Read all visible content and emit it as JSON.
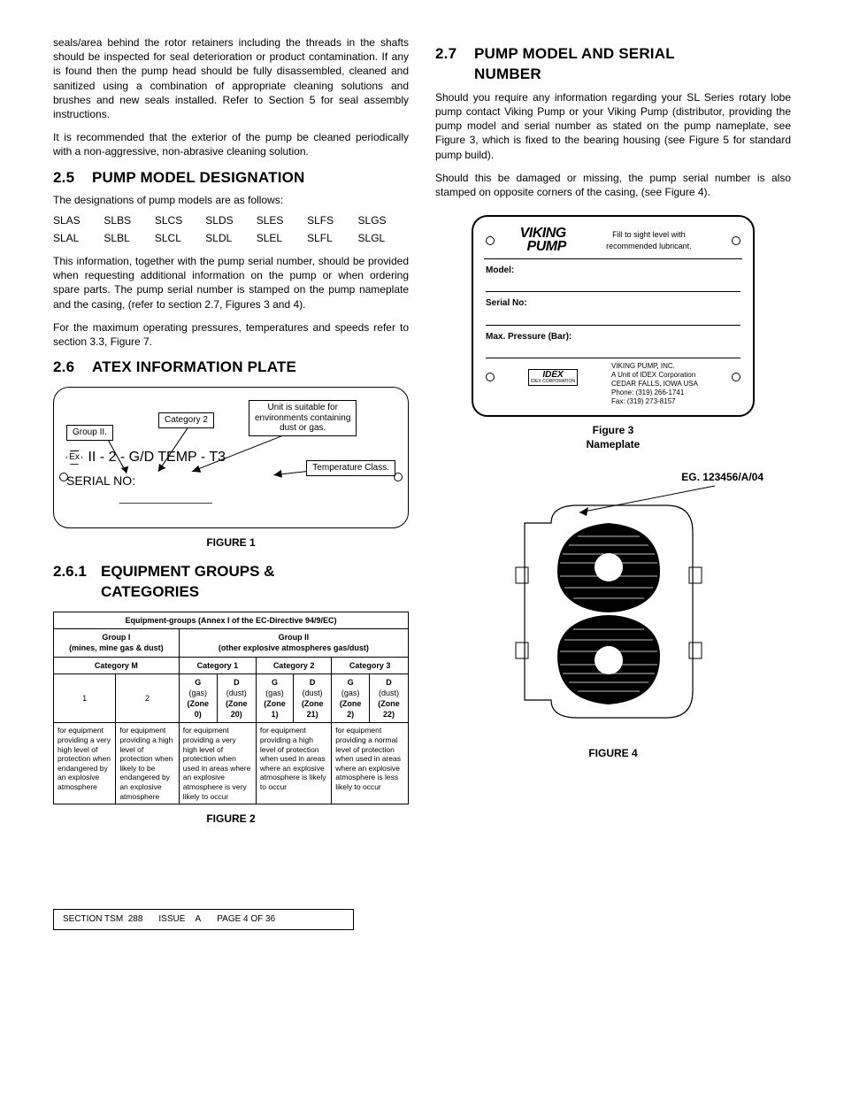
{
  "leftCol": {
    "para1": "seals/area behind the rotor retainers including the threads in the shafts should be inspected for seal deterioration or product contamination. If any is found then the pump head should be fully disassembled, cleaned and sanitized using a combination of appropriate cleaning solutions and brushes and new seals installed. Refer to Section 5 for seal assembly instructions.",
    "para2": "It is recommended that the exterior of the pump be cleaned periodically with a non-aggressive, non-abrasive cleaning solution.",
    "sec25_num": "2.5",
    "sec25_title": "PUMP MODEL DESIGNATION",
    "sec25_intro": "The designations of pump models are as follows:",
    "desig_row1": [
      "SLAS",
      "SLBS",
      "SLCS",
      "SLDS",
      "SLES",
      "SLFS",
      "SLGS"
    ],
    "desig_row2": [
      "SLAL",
      "SLBL",
      "SLCL",
      "SLDL",
      "SLEL",
      "SLFL",
      "SLGL"
    ],
    "sec25_p1": "This information, together with the pump serial number, should be provided when requesting additional information on the pump or when ordering spare parts. The pump serial number is stamped on the pump nameplate and the casing, (refer to section 2.7, Figures 3 and 4).",
    "sec25_p2": "For the maximum operating pressures, temperatures and speeds refer to section 3.3, Figure 7.",
    "sec26_num": "2.6",
    "sec26_title": "ATEX INFORMATION PLATE",
    "atex": {
      "group2": "Group II.",
      "category2": "Category 2",
      "suitable": "Unit is suitable for\nenvironments containing\ndust or gas.",
      "tempclass": "Temperature Class.",
      "code": "II - 2 - G/D  TEMP - T3",
      "ex": "Ex",
      "serial": "SERIAL NO:"
    },
    "fig1_caption": "FIGURE 1",
    "sec261_num": "2.6.1",
    "sec261_title_l1": "EQUIPMENT GROUPS &",
    "sec261_title_l2": "CATEGORIES",
    "eqtable": {
      "title": "Equipment-groups (Annex I of the EC-Directive 94/9/EC)",
      "g1_head": "Group I",
      "g1_sub": "(mines, mine gas & dust)",
      "g2_head": "Group II",
      "g2_sub": "(other explosive atmospheres gas/dust)",
      "catM": "Category M",
      "cat1": "Category 1",
      "cat2": "Category 2",
      "cat3": "Category 3",
      "one": "1",
      "two": "2",
      "G": "G",
      "D": "D",
      "gas": "(gas)",
      "dust": "(dust)",
      "z0": "(Zone 0)",
      "z20": "(Zone 20)",
      "z1": "(Zone 1)",
      "z21": "(Zone 21)",
      "z2": "(Zone 2)",
      "z22": "(Zone 22)",
      "d1": "for equipment providing a very high level of protection when endangered by an explosive atmosphere",
      "d2": "for equipment providing a high level of protection when likely to be endangered by an explosive atmosphere",
      "d3": "for equipment providing a very high level of protection when used in areas where an explosive atmosphere is very likely to occur",
      "d4": "for equipment providing a high level of protection when used in areas where an explosive  atmosphere is likely to occur",
      "d5": "for equipment providing a normal level of protection when used in areas where an explosive atmosphere is less likely to occur"
    },
    "fig2_caption": "FIGURE 2"
  },
  "rightCol": {
    "sec27_num": "2.7",
    "sec27_title_l1": "PUMP MODEL AND SERIAL",
    "sec27_title_l2": "NUMBER",
    "sec27_p1": "Should you require any information regarding your SL Series rotary lobe pump contact Viking Pump or your Viking Pump (distributor, providing the pump model and serial number as stated on the pump nameplate, see Figure 3, which is fixed to the bearing housing (see Figure 5 for standard pump build).",
    "sec27_p2": "Should this be damaged or missing, the pump serial number is also stamped on opposite corners of the casing, (see Figure 4).",
    "nameplate": {
      "logo1": "VIKING",
      "logo2": "PUMP",
      "fill": "Fill to sight level with recommended lubricant.",
      "model": "Model:",
      "serial": "Serial No:",
      "maxp": "Max. Pressure (Bar):",
      "idex": "IDEX",
      "idex_sub": "IDEX CORPORATION",
      "addr1": "VIKING PUMP, INC.",
      "addr2": "A Unit of IDEX Corporation",
      "addr3": "CEDAR FALLS, IOWA  USA",
      "addr4": "Phone: (319) 266-1741",
      "addr5": "Fax: (319) 273-8157"
    },
    "fig3_caption_l1": "Figure 3",
    "fig3_caption_l2": "Nameplate",
    "fig4_eg": "EG. 123456/A/04",
    "fig4_caption": "FIGURE 4"
  },
  "footer": {
    "section": "SECTION TSM",
    "section_val": "288",
    "issue": "ISSUE",
    "issue_val": "A",
    "page": "PAGE 4  OF  36"
  },
  "colors": {
    "text": "#000000",
    "bg": "#ffffff",
    "border": "#000000"
  }
}
